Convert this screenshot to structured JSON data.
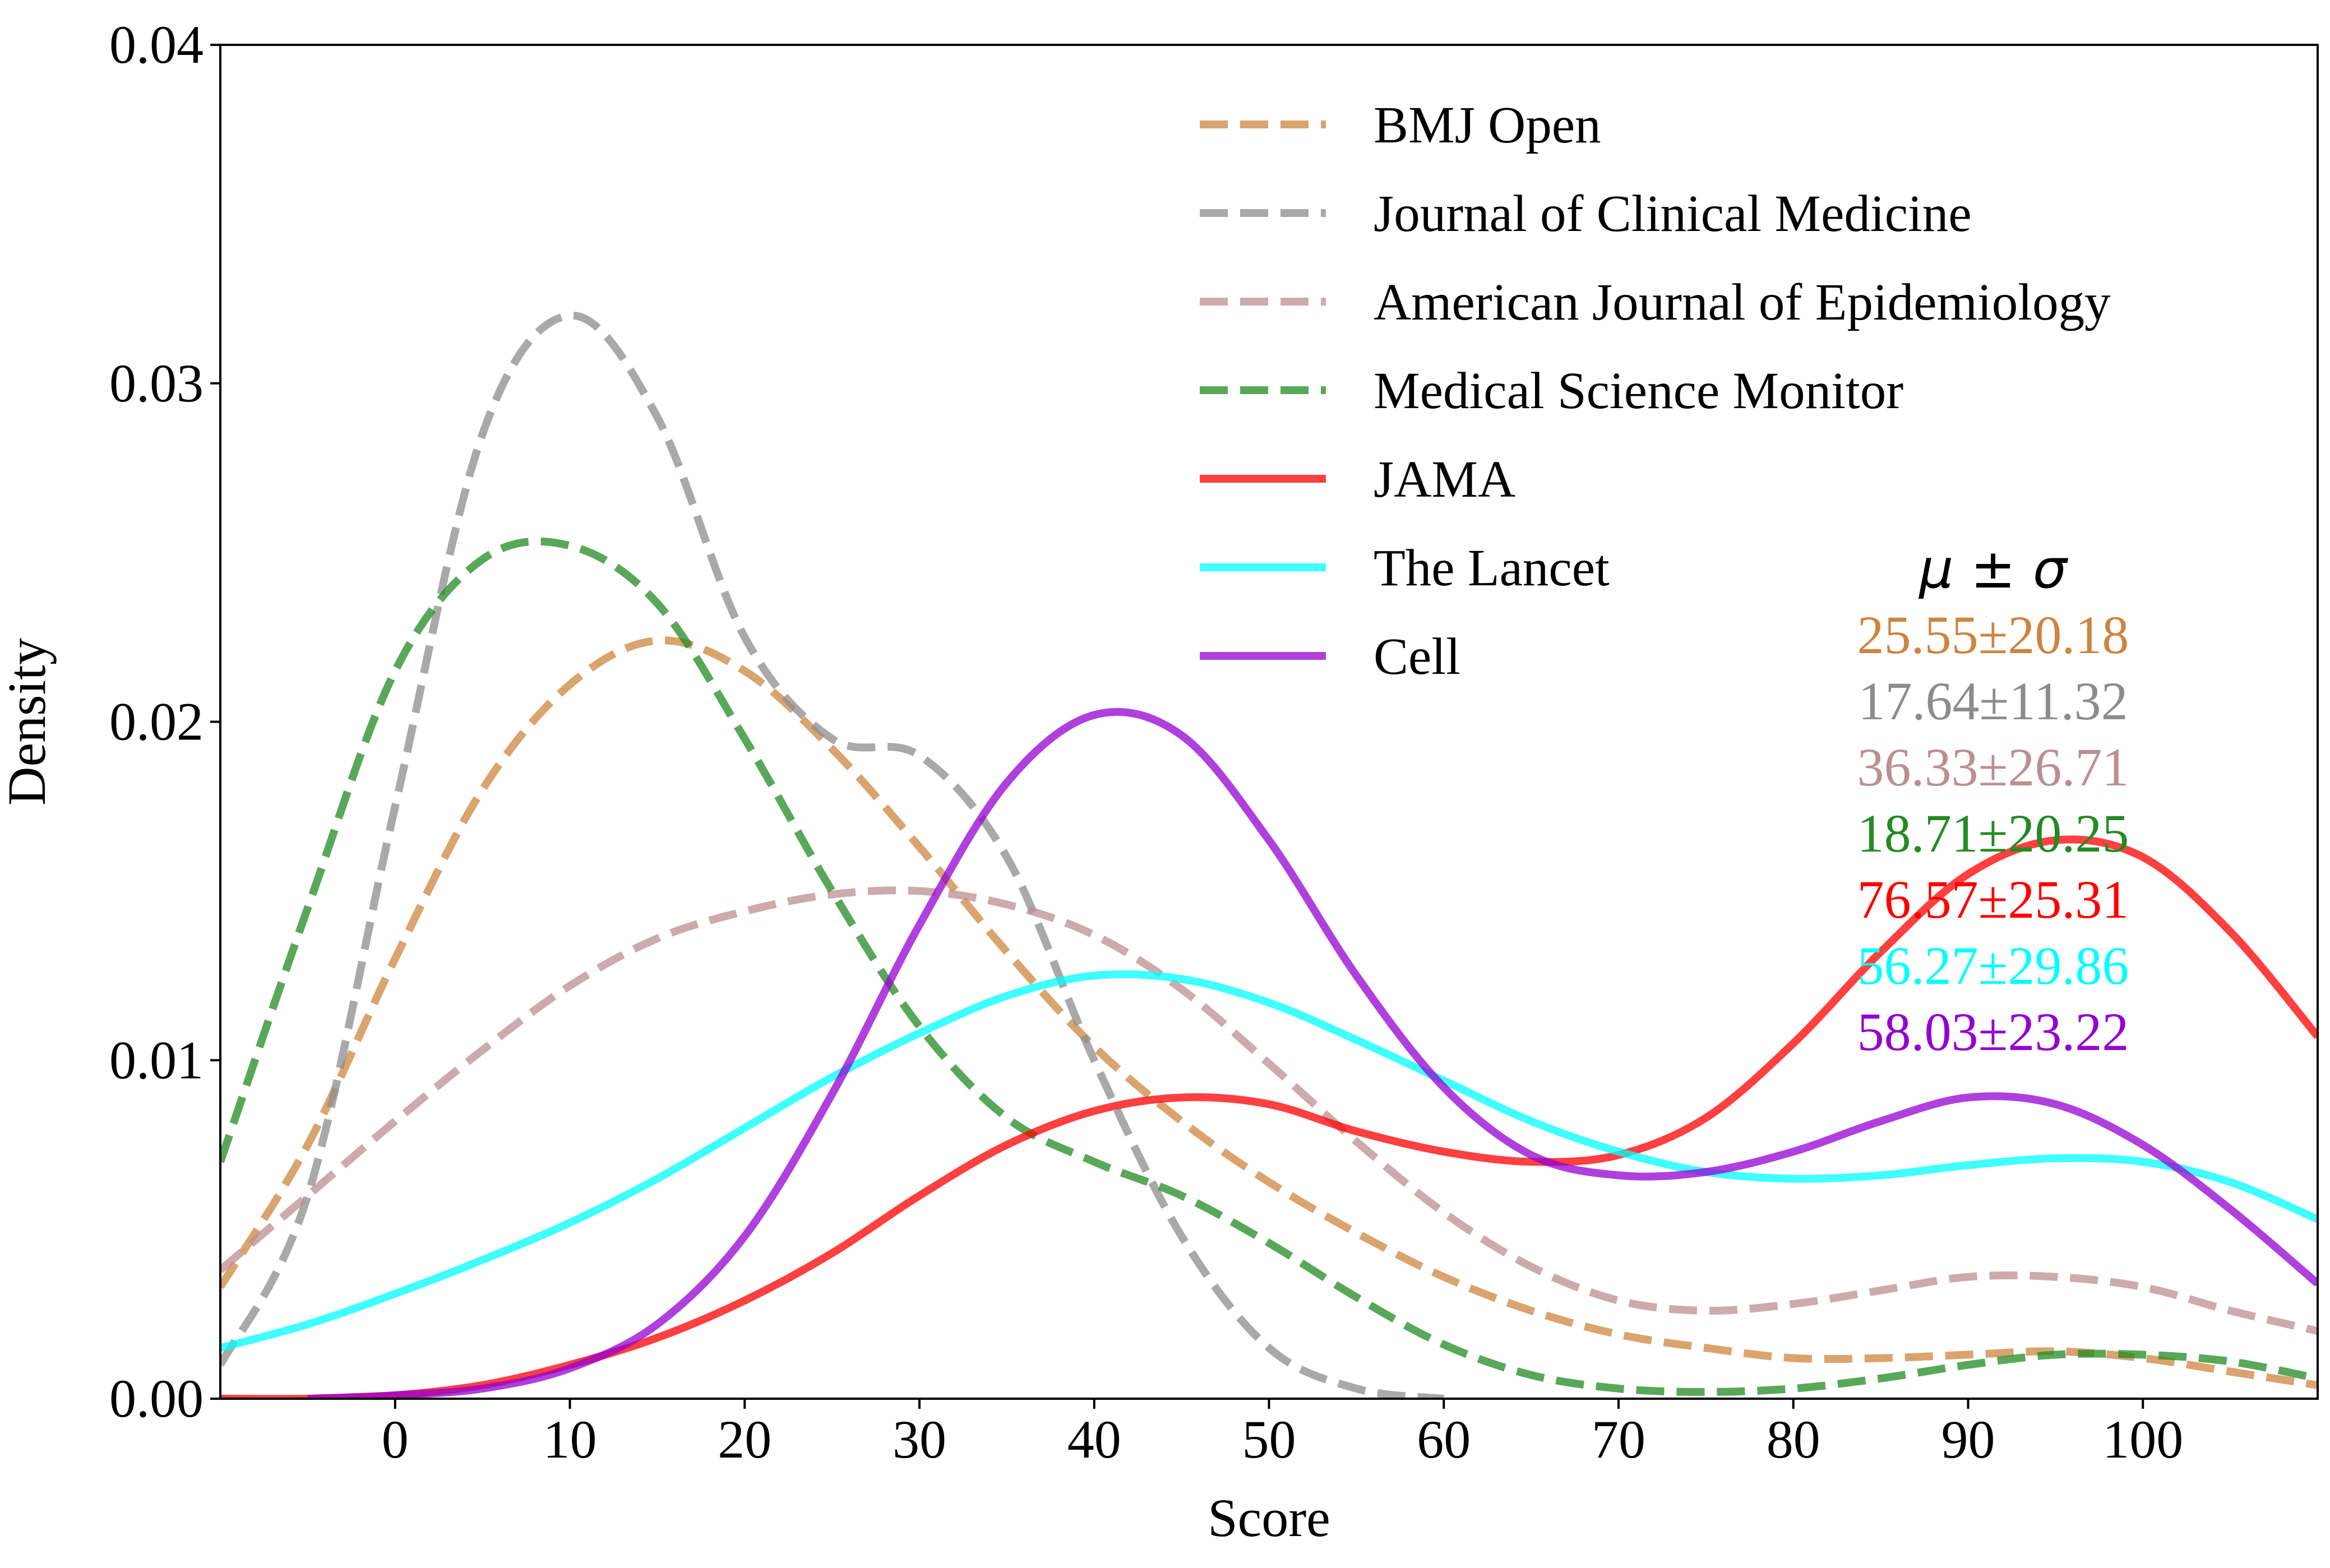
{
  "chart_data": {
    "type": "line",
    "title": "",
    "xlabel": "Score",
    "ylabel": "Density",
    "xlim": [
      -10,
      110
    ],
    "ylim": [
      0,
      0.04
    ],
    "x_ticks": [
      0,
      10,
      20,
      30,
      40,
      50,
      60,
      70,
      80,
      90,
      100
    ],
    "y_ticks": [
      0.0,
      0.01,
      0.02,
      0.03,
      0.04
    ],
    "x_tick_labels": [
      "0",
      "10",
      "20",
      "30",
      "40",
      "50",
      "60",
      "70",
      "80",
      "90",
      "100"
    ],
    "y_tick_labels": [
      "0.00",
      "0.01",
      "0.02",
      "0.03",
      "0.04"
    ],
    "legend_position": "top-right",
    "stats_header": "μ ± σ",
    "series": [
      {
        "name": "BMJ Open",
        "style": "dashed",
        "color": "#cd853f",
        "stat": "25.55±20.18",
        "x": [
          -10,
          -5,
          0,
          5,
          10,
          15,
          20,
          25,
          30,
          35,
          40,
          45,
          50,
          55,
          60,
          65,
          70,
          75,
          80,
          85,
          90,
          95,
          100,
          105,
          110
        ],
        "y": [
          0.0033,
          0.0075,
          0.013,
          0.018,
          0.0211,
          0.0224,
          0.0215,
          0.0192,
          0.0163,
          0.0132,
          0.0104,
          0.0082,
          0.0064,
          0.0049,
          0.0036,
          0.0026,
          0.0019,
          0.0015,
          0.0012,
          0.0012,
          0.0013,
          0.0014,
          0.0012,
          0.0008,
          0.0004
        ]
      },
      {
        "name": "Journal of Clinical Medicine",
        "style": "dashed",
        "color": "#8c8c8c",
        "stat": "17.64±11.32",
        "x": [
          -10,
          -5,
          0,
          5,
          10,
          15,
          20,
          25,
          30,
          35,
          40,
          45,
          50,
          55,
          60
        ],
        "y": [
          0.001,
          0.006,
          0.0175,
          0.0285,
          0.032,
          0.029,
          0.0225,
          0.0195,
          0.019,
          0.016,
          0.01,
          0.0048,
          0.0015,
          0.0003,
          0.0
        ]
      },
      {
        "name": "American Journal of Epidemiology",
        "style": "dashed",
        "color": "#bc8f8f",
        "stat": "36.33±26.71",
        "x": [
          -10,
          -5,
          0,
          5,
          10,
          15,
          20,
          25,
          30,
          35,
          40,
          45,
          50,
          55,
          60,
          65,
          70,
          75,
          80,
          85,
          90,
          95,
          100,
          105,
          110
        ],
        "y": [
          0.0038,
          0.006,
          0.0082,
          0.0103,
          0.0122,
          0.0136,
          0.0144,
          0.0149,
          0.015,
          0.0146,
          0.0137,
          0.0121,
          0.0099,
          0.0076,
          0.0055,
          0.0039,
          0.0029,
          0.0026,
          0.0028,
          0.0032,
          0.0036,
          0.0036,
          0.0033,
          0.0026,
          0.002
        ]
      },
      {
        "name": "Medical Science Monitor",
        "style": "dashed",
        "color": "#228b22",
        "stat": "18.71±20.25",
        "x": [
          -10,
          -5,
          0,
          5,
          10,
          15,
          20,
          25,
          30,
          35,
          40,
          45,
          50,
          55,
          60,
          65,
          70,
          75,
          80,
          85,
          90,
          95,
          100,
          105,
          110
        ],
        "y": [
          0.007,
          0.0145,
          0.0215,
          0.0248,
          0.0252,
          0.0235,
          0.0195,
          0.015,
          0.011,
          0.0083,
          0.007,
          0.006,
          0.0046,
          0.003,
          0.0016,
          0.0007,
          0.0003,
          0.0002,
          0.0003,
          0.0006,
          0.001,
          0.0013,
          0.0013,
          0.0011,
          0.0006
        ]
      },
      {
        "name": "JAMA",
        "style": "solid",
        "color": "#ff0000",
        "stat": "76.57±25.31",
        "x": [
          -10,
          -5,
          0,
          5,
          10,
          15,
          20,
          25,
          30,
          35,
          40,
          45,
          50,
          55,
          60,
          65,
          70,
          75,
          80,
          85,
          90,
          95,
          100,
          105,
          110
        ],
        "y": [
          0.0,
          0.0,
          0.0001,
          0.0004,
          0.001,
          0.0018,
          0.0029,
          0.0043,
          0.006,
          0.0075,
          0.0085,
          0.0089,
          0.0087,
          0.0079,
          0.0073,
          0.007,
          0.0072,
          0.0083,
          0.0105,
          0.0132,
          0.0155,
          0.0165,
          0.016,
          0.0138,
          0.0107
        ]
      },
      {
        "name": "The Lancet",
        "style": "solid",
        "color": "#00ffff",
        "stat": "56.27±29.86",
        "x": [
          -10,
          -5,
          0,
          5,
          10,
          15,
          20,
          25,
          30,
          35,
          40,
          45,
          50,
          55,
          60,
          65,
          70,
          75,
          80,
          85,
          90,
          95,
          100,
          105,
          110
        ],
        "y": [
          0.0015,
          0.0022,
          0.0031,
          0.0041,
          0.0052,
          0.0065,
          0.008,
          0.0095,
          0.0108,
          0.0119,
          0.0125,
          0.0124,
          0.0117,
          0.0106,
          0.0094,
          0.0082,
          0.0073,
          0.0067,
          0.0065,
          0.0066,
          0.0069,
          0.0071,
          0.007,
          0.0064,
          0.0053
        ]
      },
      {
        "name": "Cell",
        "style": "solid",
        "color": "#9400d3",
        "stat": "58.03±23.22",
        "x": [
          -5,
          0,
          5,
          10,
          15,
          20,
          25,
          30,
          35,
          40,
          45,
          50,
          55,
          60,
          65,
          70,
          75,
          80,
          85,
          90,
          95,
          100,
          105,
          110
        ],
        "y": [
          0.0,
          0.0001,
          0.0003,
          0.0009,
          0.0022,
          0.0048,
          0.009,
          0.014,
          0.0182,
          0.0202,
          0.0196,
          0.0165,
          0.0125,
          0.0092,
          0.0072,
          0.0066,
          0.0067,
          0.0073,
          0.0082,
          0.0089,
          0.0087,
          0.0075,
          0.0056,
          0.0034
        ]
      }
    ]
  }
}
